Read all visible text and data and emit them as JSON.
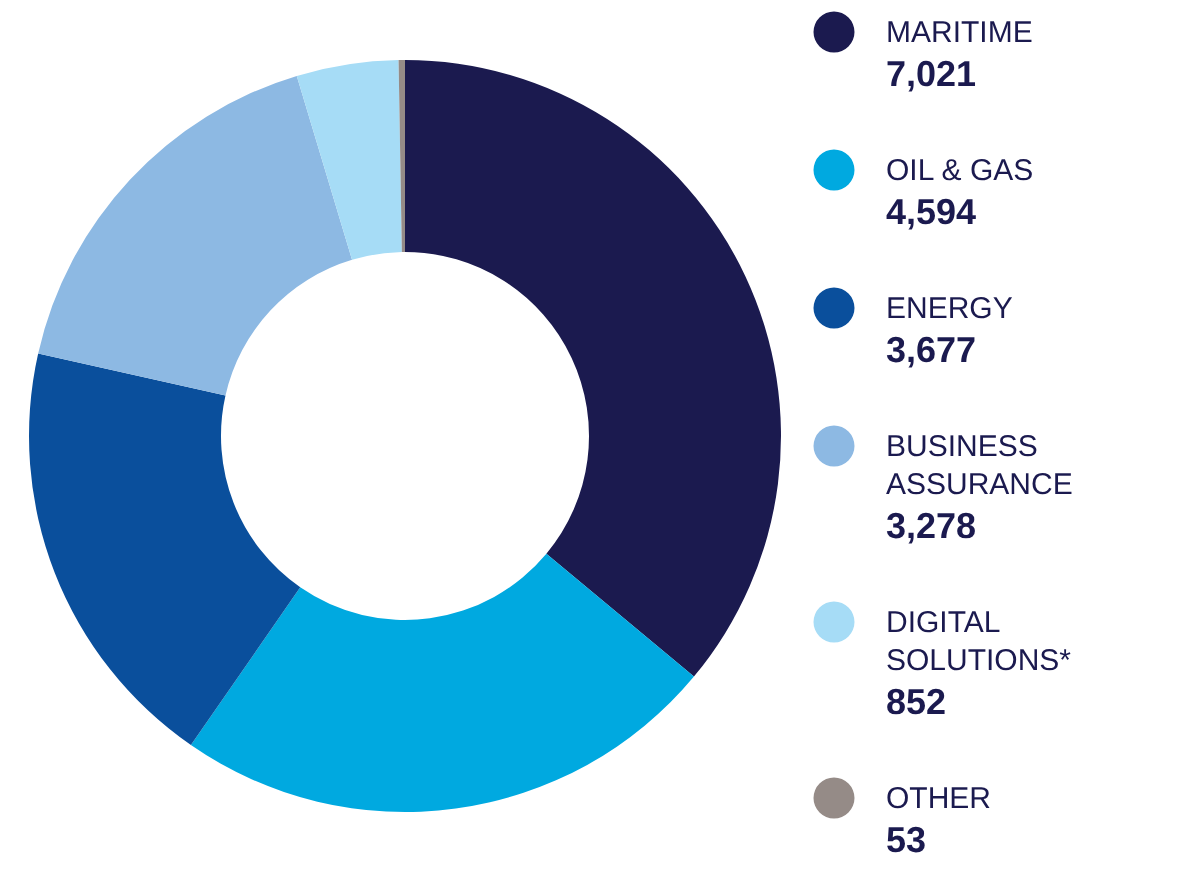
{
  "chart_data": {
    "type": "donut",
    "categories": [
      "MARITIME",
      "OIL & GAS",
      "ENERGY",
      "BUSINESS ASSURANCE",
      "DIGITAL SOLUTIONS*",
      "OTHER"
    ],
    "values": [
      7021,
      4594,
      3677,
      3278,
      852,
      53
    ],
    "colors": [
      "#1b1a4f",
      "#00a9e0",
      "#0a4f9c",
      "#8db9e3",
      "#a6dcf6",
      "#958b87"
    ],
    "value_labels": [
      "7,021",
      "4,594",
      "3,677",
      "3,278",
      "852",
      "53"
    ],
    "legend": "right"
  }
}
